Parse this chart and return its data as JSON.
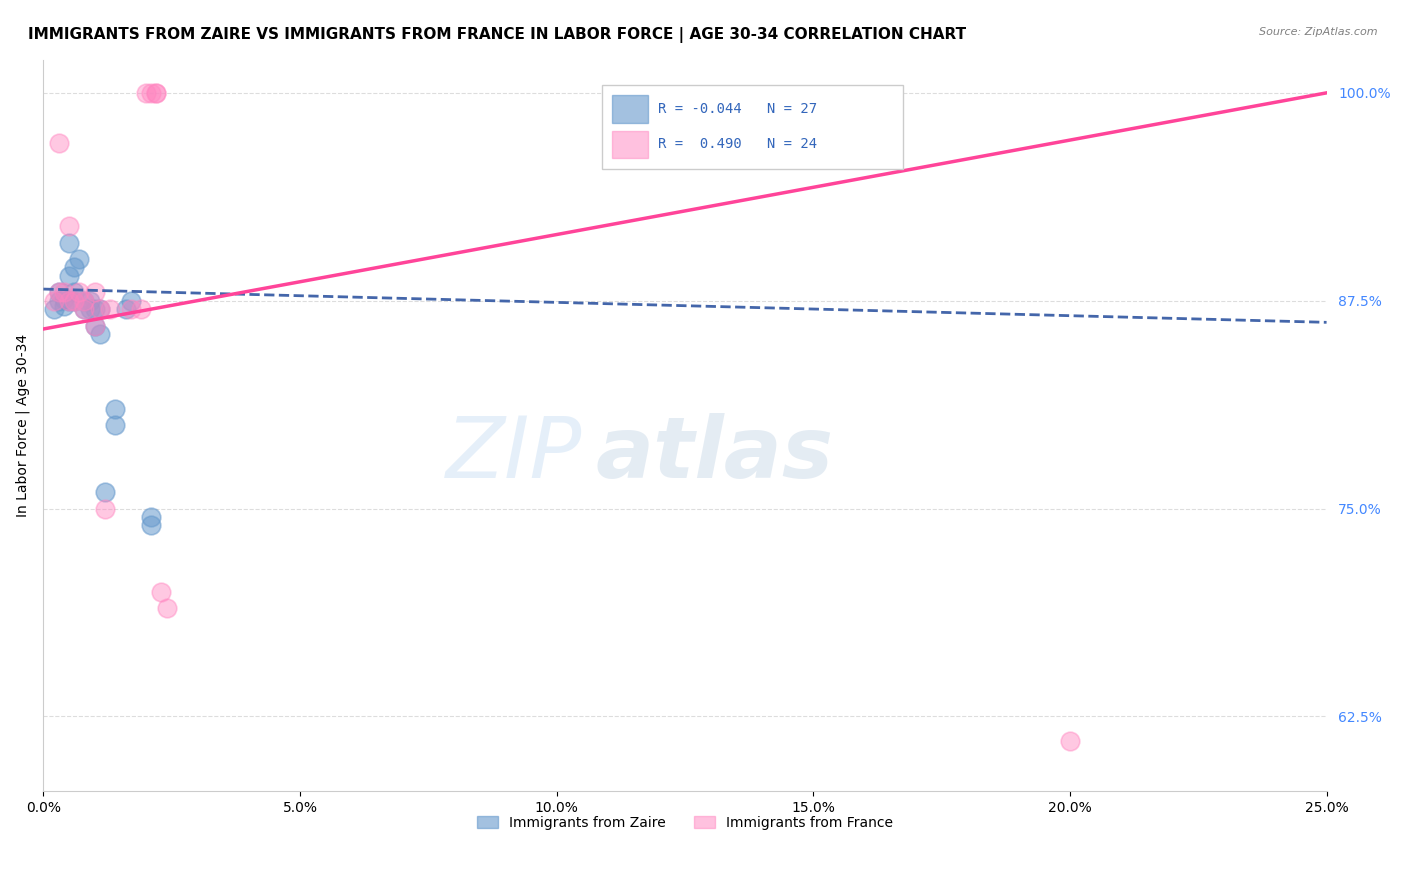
{
  "title": "IMMIGRANTS FROM ZAIRE VS IMMIGRANTS FROM FRANCE IN LABOR FORCE | AGE 30-34 CORRELATION CHART",
  "source": "Source: ZipAtlas.com",
  "ylabel": "In Labor Force | Age 30-34",
  "yaxis_ticks": [
    62.5,
    75.0,
    87.5,
    100.0
  ],
  "yaxis_tick_labels": [
    "62.5%",
    "75.0%",
    "87.5%",
    "100.0%"
  ],
  "xlim": [
    0.0,
    0.25
  ],
  "ylim": [
    0.58,
    1.02
  ],
  "legend_label_blue": "Immigrants from Zaire",
  "legend_label_pink": "Immigrants from France",
  "R_blue": -0.044,
  "N_blue": 27,
  "R_pink": 0.49,
  "N_pink": 24,
  "blue_scatter_x": [
    0.002,
    0.003,
    0.003,
    0.004,
    0.004,
    0.005,
    0.005,
    0.005,
    0.006,
    0.006,
    0.006,
    0.007,
    0.008,
    0.008,
    0.009,
    0.009,
    0.01,
    0.01,
    0.011,
    0.011,
    0.012,
    0.014,
    0.014,
    0.016,
    0.017,
    0.021,
    0.021
  ],
  "blue_scatter_y": [
    0.87,
    0.875,
    0.88,
    0.876,
    0.872,
    0.875,
    0.89,
    0.91,
    0.875,
    0.88,
    0.895,
    0.9,
    0.87,
    0.875,
    0.87,
    0.875,
    0.87,
    0.86,
    0.87,
    0.855,
    0.76,
    0.8,
    0.81,
    0.87,
    0.875,
    0.74,
    0.745
  ],
  "pink_scatter_x": [
    0.002,
    0.003,
    0.003,
    0.004,
    0.005,
    0.005,
    0.006,
    0.007,
    0.008,
    0.008,
    0.01,
    0.01,
    0.011,
    0.012,
    0.013,
    0.017,
    0.019,
    0.02,
    0.021,
    0.022,
    0.022,
    0.023,
    0.024,
    0.2
  ],
  "pink_scatter_y": [
    0.875,
    0.88,
    0.97,
    0.88,
    0.875,
    0.92,
    0.875,
    0.88,
    0.87,
    0.875,
    0.86,
    0.88,
    0.87,
    0.75,
    0.87,
    0.87,
    0.87,
    1.0,
    1.0,
    1.0,
    1.0,
    0.7,
    0.69,
    0.61
  ],
  "blue_line_x": [
    0.0,
    0.25
  ],
  "blue_line_y": [
    0.882,
    0.862
  ],
  "pink_line_x": [
    0.0,
    0.25
  ],
  "pink_line_y": [
    0.858,
    1.0
  ],
  "watermark_zip": "ZIP",
  "watermark_atlas": "atlas",
  "blue_color": "#6699CC",
  "pink_color": "#FF85C0",
  "blue_line_color": "#4466AA",
  "pink_line_color": "#FF4499",
  "grid_color": "#DDDDDD",
  "yaxis_right_color": "#4488FF",
  "title_fontsize": 11,
  "tick_fontsize": 10
}
